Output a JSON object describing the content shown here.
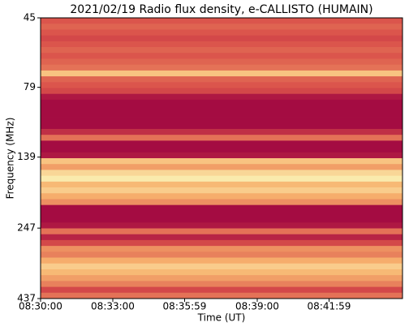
{
  "chart_data": {
    "type": "heatmap",
    "title": "2021/02/19  Radio flux density, e-CALLISTO (HUMAIN)",
    "x_label": "Time (UT)",
    "y_label": "Frequency (MHz)",
    "xlim": [
      30600,
      31502
    ],
    "xticks": [
      {
        "value": 30600,
        "label": "08:30:00"
      },
      {
        "value": 30780,
        "label": "08:33:00"
      },
      {
        "value": 30959,
        "label": "08:35:59"
      },
      {
        "value": 31140,
        "label": "08:39:00"
      },
      {
        "value": 31319,
        "label": "08:41:59"
      }
    ],
    "ylim": [
      45,
      437
    ],
    "yticks": [
      45,
      79,
      139,
      247,
      437
    ],
    "y_log": true,
    "y_inverted": true,
    "colormap": [
      "#9b0040",
      "#d9504a",
      "#f7b26e",
      "#fbf4b8"
    ],
    "values": [
      0.35,
      0.4,
      0.35,
      0.3,
      0.35,
      0.4,
      0.35,
      0.4,
      0.45,
      0.75,
      0.4,
      0.35,
      0.3,
      0.1,
      0.05,
      0.05,
      0.05,
      0.05,
      0.05,
      0.2,
      0.45,
      0.05,
      0.05,
      0.1,
      0.75,
      0.6,
      0.85,
      0.95,
      0.7,
      0.8,
      0.65,
      0.55,
      0.05,
      0.05,
      0.05,
      0.1,
      0.45,
      0.15,
      0.3,
      0.55,
      0.5,
      0.65,
      0.8,
      0.7,
      0.6,
      0.5,
      0.3,
      0.45
    ]
  }
}
